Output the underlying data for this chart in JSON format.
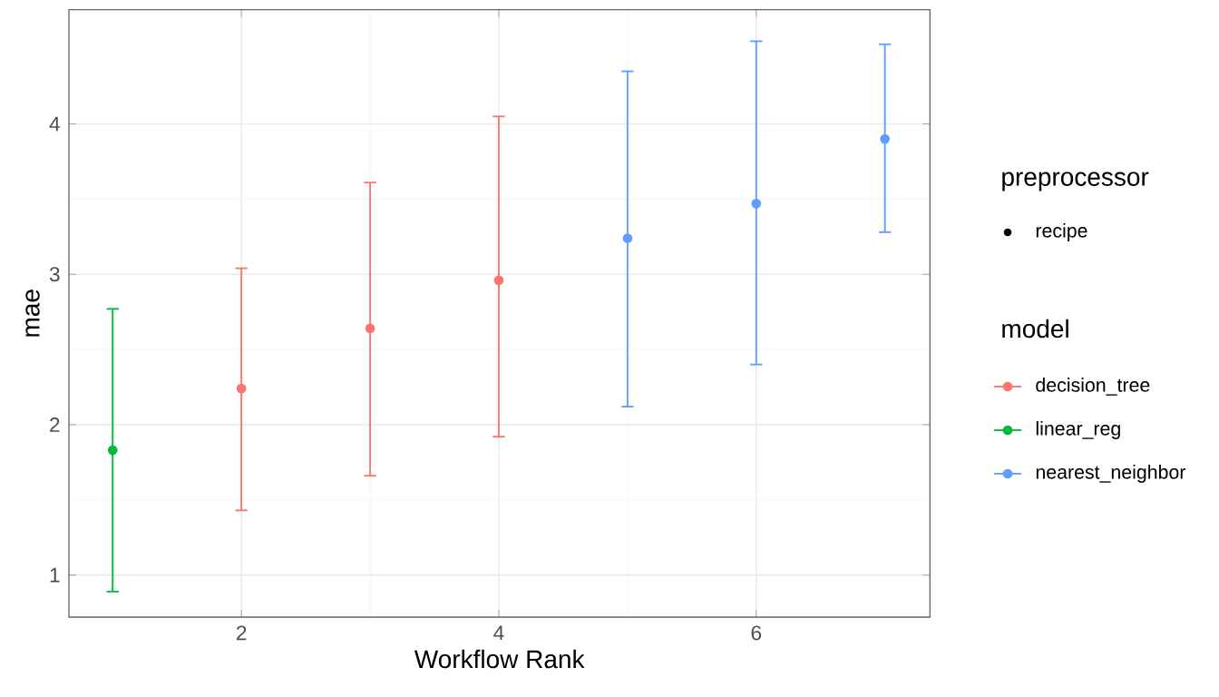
{
  "chart_data": {
    "type": "scatter",
    "xlabel": "Workflow Rank",
    "ylabel": "mae",
    "xlim": [
      0.66,
      7.35
    ],
    "ylim": [
      0.72,
      4.76
    ],
    "xticks": [
      2,
      4,
      6
    ],
    "yticks": [
      1,
      2,
      3,
      4
    ],
    "grid": true,
    "legend": "right",
    "legend_title": "model",
    "marker": "circle",
    "annotations": [
      "preprocessor",
      "recipe"
    ],
    "series": [
      {
        "name": "decision_tree",
        "color": "#f8766d",
        "x": [
          2,
          3,
          4
        ],
        "values": [
          2.24,
          2.64,
          2.96
        ],
        "errors": [
          [
            1.43,
            3.04
          ],
          [
            1.66,
            3.61
          ],
          [
            1.92,
            4.05
          ]
        ]
      },
      {
        "name": "linear_reg",
        "color": "#00ba38",
        "x": [
          1
        ],
        "values": [
          1.83
        ],
        "errors": [
          [
            0.89,
            2.77
          ]
        ]
      },
      {
        "name": "nearest_neighbor",
        "color": "#619cff",
        "x": [
          5,
          6,
          7
        ],
        "values": [
          3.24,
          3.47,
          3.9
        ],
        "errors": [
          [
            2.12,
            4.35
          ],
          [
            2.4,
            4.55
          ],
          [
            3.28,
            4.53
          ]
        ]
      }
    ]
  }
}
